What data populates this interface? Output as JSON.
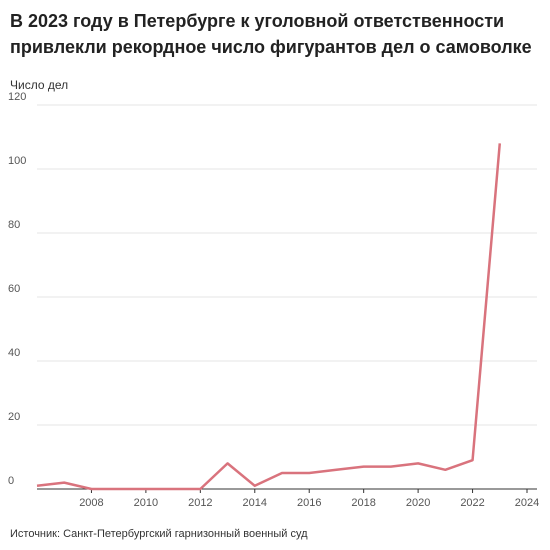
{
  "chart_data": {
    "type": "line",
    "title": "В 2023 году в Петербурге к уголовной ответственности привлекли рекордное число фигурантов дел о самоволке",
    "y_label": "Число дел",
    "source": "Источник: Санкт-Петербургский гарнизонный военный суд",
    "x": [
      2006,
      2007,
      2008,
      2009,
      2010,
      2011,
      2012,
      2013,
      2014,
      2015,
      2016,
      2017,
      2018,
      2019,
      2020,
      2021,
      2022,
      2023
    ],
    "series": [
      {
        "color": "#d9737d",
        "values": [
          1,
          2,
          0,
          0,
          0,
          0,
          0,
          8,
          1,
          5,
          5,
          6,
          7,
          7,
          8,
          6,
          9,
          108
        ]
      }
    ],
    "xlim": [
      2006,
      2024
    ],
    "xticks": [
      2008,
      2010,
      2012,
      2014,
      2016,
      2018,
      2020,
      2022,
      2024
    ],
    "ylim": [
      0,
      120
    ],
    "yticks": [
      0,
      20,
      40,
      60,
      80,
      100,
      120
    ],
    "grid": true
  }
}
